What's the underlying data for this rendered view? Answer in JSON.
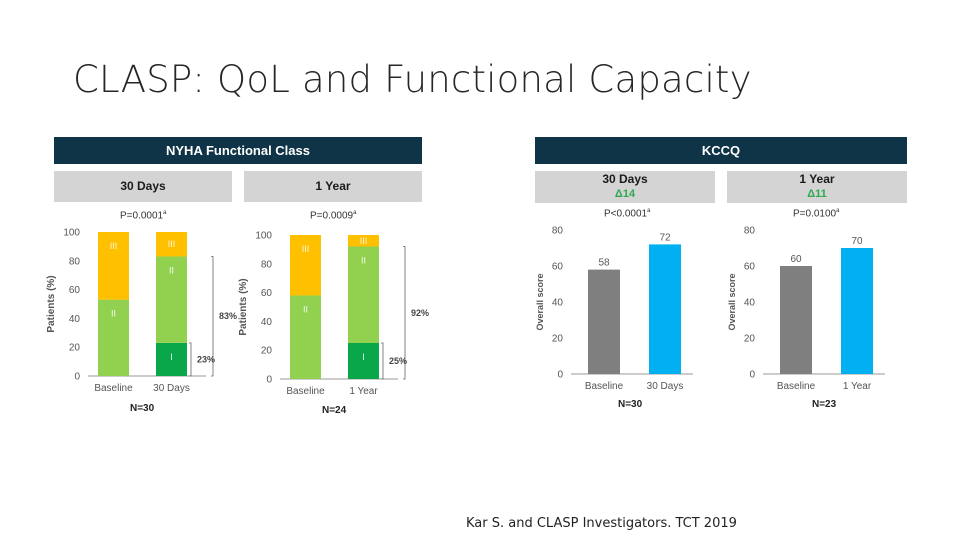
{
  "slide": {
    "title": "CLASP: QoL and Functional Capacity",
    "citation": "Kar S. and CLASP Investigators. TCT 2019"
  },
  "nyha": {
    "header": "NYHA Functional Class",
    "panels": [
      {
        "subtitle": "30 Days",
        "pvalue": "P=0.0001",
        "pvalue_sup": "a",
        "n": "N=30",
        "bracket_all": "83%",
        "bracket_class1": "23%"
      },
      {
        "subtitle": "1 Year",
        "pvalue": "P=0.0009",
        "pvalue_sup": "a",
        "n": "N=24",
        "bracket_all": "92%",
        "bracket_class1": "25%"
      }
    ]
  },
  "kccq": {
    "header": "KCCQ",
    "panels": [
      {
        "subtitle": "30 Days",
        "delta": "Δ14",
        "pvalue": "P<0.0001",
        "pvalue_sup": "a",
        "n": "N=30"
      },
      {
        "subtitle": "1 Year",
        "delta": "Δ11",
        "pvalue": "P=0.0100",
        "pvalue_sup": "a",
        "n": "N=23"
      }
    ]
  },
  "colors": {
    "class_I": "#0aa64a",
    "class_II": "#92d050",
    "class_III": "#ffc000",
    "baseline_bar": "#7f7f7f",
    "followup_bar": "#00b0f0",
    "header_bg": "#0f3447",
    "subheader_bg": "#d4d4d4"
  },
  "chart_data": [
    {
      "type": "bar",
      "stacked": true,
      "title": "30 Days",
      "ylabel": "Patients (%)",
      "ylim": [
        0,
        100
      ],
      "yticks": [
        0,
        20,
        40,
        60,
        80,
        100
      ],
      "categories": [
        "Baseline",
        "30 Days"
      ],
      "series": [
        {
          "name": "I",
          "values": [
            0,
            23
          ]
        },
        {
          "name": "II",
          "values": [
            53,
            60
          ]
        },
        {
          "name": "III",
          "values": [
            47,
            17
          ]
        }
      ]
    },
    {
      "type": "bar",
      "stacked": true,
      "title": "1 Year",
      "ylabel": "Patients (%)",
      "ylim": [
        0,
        100
      ],
      "yticks": [
        0,
        20,
        40,
        60,
        80,
        100
      ],
      "categories": [
        "Baseline",
        "1 Year"
      ],
      "series": [
        {
          "name": "I",
          "values": [
            0,
            25
          ]
        },
        {
          "name": "II",
          "values": [
            58,
            67
          ]
        },
        {
          "name": "III",
          "values": [
            42,
            8
          ]
        }
      ]
    },
    {
      "type": "bar",
      "title": "30 Days",
      "ylabel": "Overall score",
      "ylim": [
        0,
        80
      ],
      "yticks": [
        0,
        20,
        40,
        60,
        80
      ],
      "categories": [
        "Baseline",
        "30 Days"
      ],
      "values": [
        58,
        72
      ]
    },
    {
      "type": "bar",
      "title": "1 Year",
      "ylabel": "Overall score",
      "ylim": [
        0,
        80
      ],
      "yticks": [
        0,
        20,
        40,
        60,
        80
      ],
      "categories": [
        "Baseline",
        "1 Year"
      ],
      "values": [
        60,
        70
      ]
    }
  ]
}
